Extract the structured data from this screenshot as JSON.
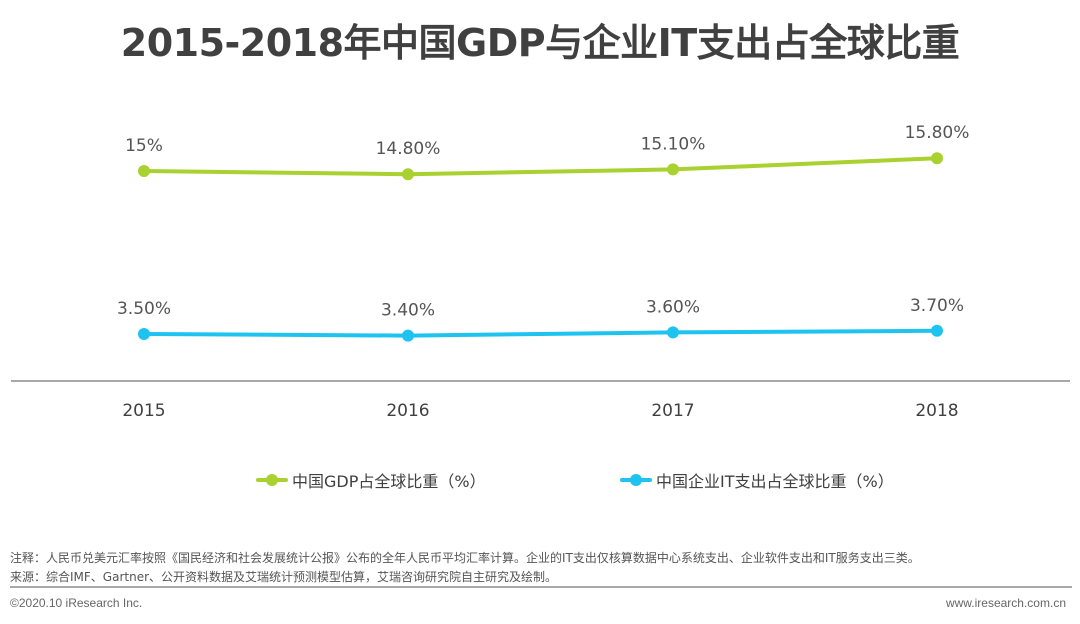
{
  "chart_data": {
    "type": "line",
    "title": "2015-2018年中国GDP与企业IT支出占全球比重",
    "xlabel": "",
    "ylabel": "",
    "categories": [
      "2015",
      "2016",
      "2017",
      "2018"
    ],
    "series": [
      {
        "name": "中国GDP占全球比重（%）",
        "color": "#a9d130",
        "values": [
          15.0,
          14.8,
          15.1,
          15.8
        ],
        "labels": [
          "15%",
          "14.80%",
          "15.10%",
          "15.80%"
        ]
      },
      {
        "name": "中国企业IT支出占全球比重（%）",
        "color": "#1fc3ef",
        "values": [
          3.5,
          3.4,
          3.6,
          3.7
        ],
        "labels": [
          "3.50%",
          "3.40%",
          "3.60%",
          "3.70%"
        ]
      }
    ],
    "grid": false,
    "legend_position": "bottom-center",
    "axis_color": "#a8a8a8"
  },
  "notes": {
    "note": "注释：人民币兑美元汇率按照《国民经济和社会发展统计公报》公布的全年人民币平均汇率计算。企业的IT支出仅核算数据中心系统支出、企业软件支出和IT服务支出三类。",
    "source": "来源：综合IMF、Gartner、公开资料数据及艾瑞统计预测模型估算，艾瑞咨询研究院自主研究及绘制。"
  },
  "footer": {
    "copyright": "©2020.10 iResearch Inc.",
    "website": "www.iresearch.com.cn"
  }
}
